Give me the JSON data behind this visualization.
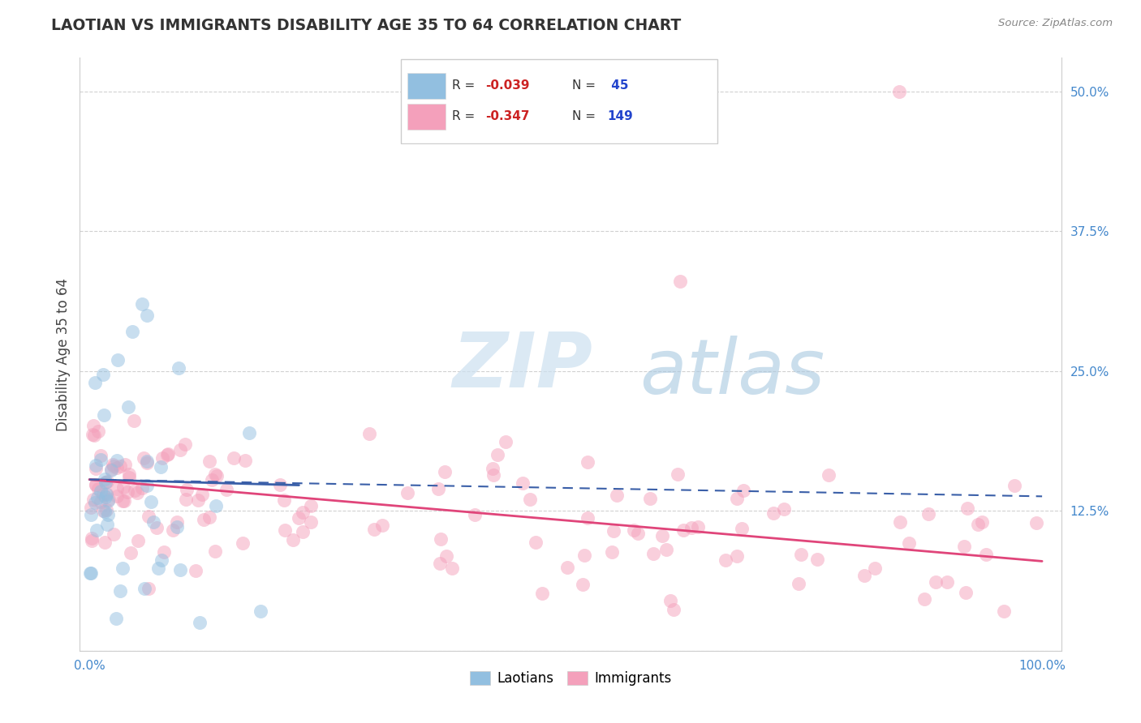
{
  "title": "LAOTIAN VS IMMIGRANTS DISABILITY AGE 35 TO 64 CORRELATION CHART",
  "source_text": "Source: ZipAtlas.com",
  "ylabel": "Disability Age 35 to 64",
  "laotians_color": "#92bfe0",
  "immigrants_color": "#f4a0bb",
  "laotians_line_color": "#3a5fa8",
  "immigrants_line_color": "#e0457a",
  "watermark_zip": "ZIP",
  "watermark_atlas": "atlas",
  "watermark_color_zip": "#c8ddf0",
  "watermark_color_atlas": "#a8c8e8",
  "r1": "-0.039",
  "n1": "45",
  "r2": "-0.347",
  "n2": "149",
  "ytick_vals": [
    0.0,
    12.5,
    25.0,
    37.5,
    50.0
  ],
  "ytick_labels": [
    "",
    "12.5%",
    "25.0%",
    "37.5%",
    "50.0%"
  ],
  "xtick_vals": [
    0.0,
    100.0
  ],
  "xtick_labels": [
    "0.0%",
    "100.0%"
  ],
  "ylim": [
    0.0,
    53.0
  ],
  "xlim": [
    -1.0,
    102.0
  ]
}
